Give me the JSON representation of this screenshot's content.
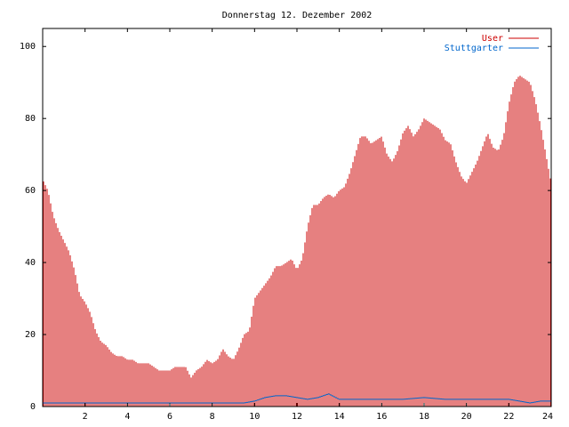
{
  "chart_data": {
    "type": "bar",
    "title": "Donnerstag 12. Dezember 2002",
    "xlabel": "",
    "ylabel": "",
    "xlim": [
      0,
      24
    ],
    "ylim": [
      0,
      105
    ],
    "x_ticks": [
      "2",
      "4",
      "6",
      "8",
      "10",
      "12",
      "14",
      "16",
      "18",
      "20",
      "22",
      "24"
    ],
    "y_ticks": [
      "0",
      "20",
      "40",
      "60",
      "80",
      "100"
    ],
    "grid": false,
    "legend": "top-right",
    "series": [
      {
        "name": "User",
        "style": "impulses",
        "color": "#cc0000",
        "points": [
          [
            0.0,
            63
          ],
          [
            0.25,
            60
          ],
          [
            0.5,
            53
          ],
          [
            0.75,
            49
          ],
          [
            1.0,
            46
          ],
          [
            1.25,
            43
          ],
          [
            1.5,
            38
          ],
          [
            1.75,
            31
          ],
          [
            2.0,
            29
          ],
          [
            2.25,
            26
          ],
          [
            2.5,
            21
          ],
          [
            2.75,
            18
          ],
          [
            3.0,
            17
          ],
          [
            3.25,
            15
          ],
          [
            3.5,
            14
          ],
          [
            3.75,
            14
          ],
          [
            4.0,
            13
          ],
          [
            4.25,
            13
          ],
          [
            4.5,
            12
          ],
          [
            4.75,
            12
          ],
          [
            5.0,
            12
          ],
          [
            5.25,
            11
          ],
          [
            5.5,
            10
          ],
          [
            5.75,
            10
          ],
          [
            6.0,
            10
          ],
          [
            6.25,
            11
          ],
          [
            6.5,
            11
          ],
          [
            6.75,
            11
          ],
          [
            7.0,
            8
          ],
          [
            7.25,
            10
          ],
          [
            7.5,
            11
          ],
          [
            7.75,
            13
          ],
          [
            8.0,
            12
          ],
          [
            8.25,
            13
          ],
          [
            8.5,
            16
          ],
          [
            8.75,
            14
          ],
          [
            9.0,
            13
          ],
          [
            9.25,
            16
          ],
          [
            9.5,
            20
          ],
          [
            9.75,
            21
          ],
          [
            10.0,
            30
          ],
          [
            10.25,
            32
          ],
          [
            10.5,
            34
          ],
          [
            10.75,
            36
          ],
          [
            11.0,
            39
          ],
          [
            11.25,
            39
          ],
          [
            11.5,
            40
          ],
          [
            11.75,
            41
          ],
          [
            12.0,
            38
          ],
          [
            12.25,
            41
          ],
          [
            12.5,
            50
          ],
          [
            12.75,
            56
          ],
          [
            13.0,
            56
          ],
          [
            13.25,
            58
          ],
          [
            13.5,
            59
          ],
          [
            13.75,
            58
          ],
          [
            14.0,
            60
          ],
          [
            14.25,
            61
          ],
          [
            14.5,
            65
          ],
          [
            14.75,
            70
          ],
          [
            15.0,
            75
          ],
          [
            15.25,
            75
          ],
          [
            15.5,
            73
          ],
          [
            15.75,
            74
          ],
          [
            16.0,
            75
          ],
          [
            16.25,
            70
          ],
          [
            16.5,
            68
          ],
          [
            16.75,
            71
          ],
          [
            17.0,
            76
          ],
          [
            17.25,
            78
          ],
          [
            17.5,
            75
          ],
          [
            17.75,
            77
          ],
          [
            18.0,
            80
          ],
          [
            18.25,
            79
          ],
          [
            18.5,
            78
          ],
          [
            18.75,
            77
          ],
          [
            19.0,
            74
          ],
          [
            19.25,
            73
          ],
          [
            19.5,
            68
          ],
          [
            19.75,
            64
          ],
          [
            20.0,
            62
          ],
          [
            20.25,
            65
          ],
          [
            20.5,
            68
          ],
          [
            20.75,
            72
          ],
          [
            21.0,
            76
          ],
          [
            21.25,
            72
          ],
          [
            21.5,
            71
          ],
          [
            21.75,
            75
          ],
          [
            22.0,
            84
          ],
          [
            22.25,
            90
          ],
          [
            22.5,
            92
          ],
          [
            22.75,
            91
          ],
          [
            23.0,
            90
          ],
          [
            23.25,
            85
          ],
          [
            23.5,
            78
          ],
          [
            23.75,
            70
          ],
          [
            24.0,
            62
          ]
        ]
      },
      {
        "name": "Stuttgarter",
        "style": "line",
        "color": "#0066cc",
        "points": [
          [
            0.0,
            1
          ],
          [
            4.0,
            1
          ],
          [
            6.5,
            1
          ],
          [
            8.0,
            1
          ],
          [
            9.5,
            1
          ],
          [
            10.0,
            1.5
          ],
          [
            10.5,
            2.5
          ],
          [
            11.0,
            3
          ],
          [
            11.5,
            3
          ],
          [
            12.0,
            2.5
          ],
          [
            12.5,
            2
          ],
          [
            13.0,
            2.5
          ],
          [
            13.5,
            3.5
          ],
          [
            14.0,
            2
          ],
          [
            15.0,
            2
          ],
          [
            16.0,
            2
          ],
          [
            17.0,
            2
          ],
          [
            18.0,
            2.5
          ],
          [
            19.0,
            2
          ],
          [
            20.0,
            2
          ],
          [
            21.0,
            2
          ],
          [
            22.0,
            2
          ],
          [
            22.5,
            1.5
          ],
          [
            23.0,
            1
          ],
          [
            23.5,
            1.5
          ],
          [
            24.0,
            1.5
          ]
        ]
      }
    ]
  }
}
